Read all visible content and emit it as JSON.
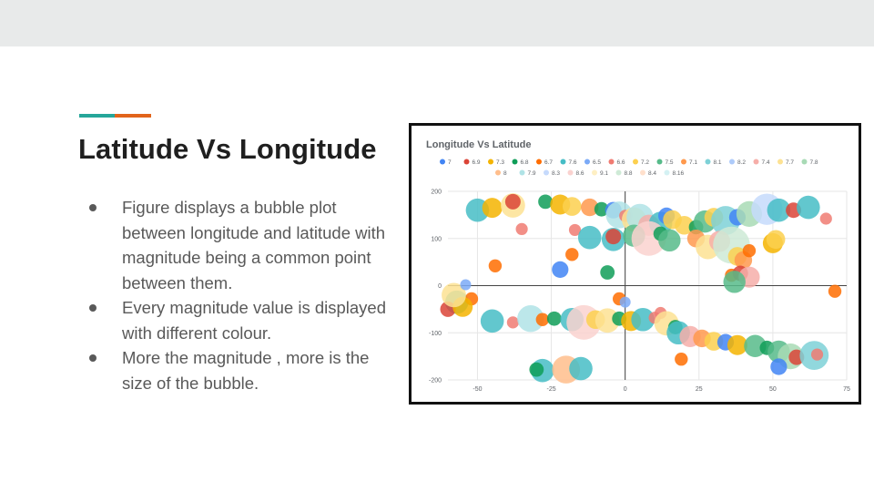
{
  "slide": {
    "title": "Latitude Vs Longitude",
    "bullets": [
      "Figure displays a bubble plot between longitude and latitude with magnitude being a common point between them.",
      "Every magnitude value is displayed with different colour.",
      "More the magnitude , more is the size of the bubble."
    ],
    "accent_colors": [
      "#26a69a",
      "#e2641b"
    ],
    "band_color": "#e8eaea"
  },
  "chart_data": {
    "type": "scatter",
    "title": "Longitude Vs Latitude",
    "xlabel": "",
    "ylabel": "",
    "xlim": [
      -60,
      75
    ],
    "ylim": [
      -200,
      200
    ],
    "x_ticks": [
      "-50",
      "-25",
      "0",
      "25",
      "50",
      "75"
    ],
    "y_ticks": [
      "200",
      "100",
      "0",
      "-100",
      "-200"
    ],
    "x_tick_values": [
      -50,
      -25,
      0,
      25,
      50,
      75
    ],
    "y_tick_values": [
      200,
      100,
      0,
      -100,
      -200
    ],
    "grid": true,
    "legend_position": "top",
    "series": [
      {
        "name": "7",
        "color": "#4285f4"
      },
      {
        "name": "6.9",
        "color": "#db4437"
      },
      {
        "name": "7.3",
        "color": "#f4b400"
      },
      {
        "name": "6.8",
        "color": "#0f9d58"
      },
      {
        "name": "6.7",
        "color": "#ff6d00"
      },
      {
        "name": "7.6",
        "color": "#46bdc6"
      },
      {
        "name": "6.5",
        "color": "#7baaf7"
      },
      {
        "name": "6.6",
        "color": "#f07b72"
      },
      {
        "name": "7.2",
        "color": "#fcd04f"
      },
      {
        "name": "7.5",
        "color": "#57bb8a"
      },
      {
        "name": "7.1",
        "color": "#ff994d"
      },
      {
        "name": "8.1",
        "color": "#7ed1d7"
      },
      {
        "name": "8.2",
        "color": "#aecbfa"
      },
      {
        "name": "7.4",
        "color": "#f6aea9"
      },
      {
        "name": "7.7",
        "color": "#fde293"
      },
      {
        "name": "7.8",
        "color": "#a8dab5"
      },
      {
        "name": "8",
        "color": "#ffbe8c"
      },
      {
        "name": "7.9",
        "color": "#b0e3e6"
      },
      {
        "name": "8.3",
        "color": "#c6dafc"
      },
      {
        "name": "8.6",
        "color": "#fad2cf"
      },
      {
        "name": "9.1",
        "color": "#feefc3"
      },
      {
        "name": "8.8",
        "color": "#ceead6"
      },
      {
        "name": "8.4",
        "color": "#ffe0cc"
      },
      {
        "name": "8.16",
        "color": "#d4f1f3"
      }
    ],
    "points": [
      [
        -50,
        160,
        7.6
      ],
      [
        -45,
        165,
        7.3
      ],
      [
        -38,
        170,
        7.7
      ],
      [
        -38,
        178,
        6.9
      ],
      [
        -27,
        178,
        6.8
      ],
      [
        -22,
        172,
        7.3
      ],
      [
        -18,
        168,
        7.2
      ],
      [
        -12,
        166,
        7.1
      ],
      [
        -8,
        162,
        6.8
      ],
      [
        -4,
        160,
        7.0
      ],
      [
        -2,
        150,
        7.9
      ],
      [
        0,
        148,
        6.6
      ],
      [
        3,
        140,
        7.7
      ],
      [
        5,
        145,
        7.9
      ],
      [
        8,
        128,
        7.4
      ],
      [
        12,
        132,
        7.6
      ],
      [
        14,
        148,
        7.0
      ],
      [
        16,
        140,
        7.2
      ],
      [
        20,
        128,
        7.2
      ],
      [
        24,
        124,
        6.8
      ],
      [
        27,
        136,
        7.5
      ],
      [
        30,
        145,
        7.2
      ],
      [
        34,
        138,
        8.1
      ],
      [
        38,
        145,
        7.0
      ],
      [
        42,
        152,
        7.8
      ],
      [
        48,
        162,
        8.3
      ],
      [
        52,
        160,
        7.6
      ],
      [
        57,
        160,
        6.9
      ],
      [
        62,
        166,
        7.6
      ],
      [
        68,
        142,
        6.6
      ],
      [
        -35,
        120,
        6.6
      ],
      [
        -17,
        118,
        6.6
      ],
      [
        -12,
        102,
        7.6
      ],
      [
        -4,
        98,
        7.6
      ],
      [
        -4,
        104,
        6.9
      ],
      [
        3,
        106,
        7.5
      ],
      [
        8,
        100,
        8.6
      ],
      [
        12,
        110,
        6.8
      ],
      [
        15,
        96,
        7.5
      ],
      [
        24,
        100,
        7.1
      ],
      [
        28,
        82,
        7.7
      ],
      [
        32,
        94,
        7.4
      ],
      [
        36,
        86,
        8.8
      ],
      [
        38,
        62,
        7.2
      ],
      [
        40,
        54,
        7.1
      ],
      [
        42,
        74,
        6.7
      ],
      [
        50,
        90,
        7.3
      ],
      [
        51,
        98,
        7.2
      ],
      [
        -18,
        66,
        6.7
      ],
      [
        -44,
        42,
        6.7
      ],
      [
        -22,
        34,
        7.0
      ],
      [
        -6,
        28,
        6.8
      ],
      [
        36,
        22,
        6.7
      ],
      [
        39,
        26,
        6.9
      ],
      [
        42,
        18,
        7.4
      ],
      [
        37,
        8,
        7.5
      ],
      [
        -57,
        -35,
        7.6
      ],
      [
        -60,
        -50,
        6.9
      ],
      [
        -52,
        -28,
        6.7
      ],
      [
        -55,
        -45,
        7.3
      ],
      [
        -58,
        -20,
        7.7
      ],
      [
        -54,
        2,
        6.5
      ],
      [
        -45,
        -75,
        7.6
      ],
      [
        -38,
        -78,
        6.6
      ],
      [
        -32,
        -70,
        7.9
      ],
      [
        -28,
        -72,
        6.7
      ],
      [
        -24,
        -70,
        6.8
      ],
      [
        -18,
        -72,
        7.6
      ],
      [
        -14,
        -78,
        8.6
      ],
      [
        -10,
        -72,
        7.2
      ],
      [
        -6,
        -74,
        7.7
      ],
      [
        -2,
        -70,
        6.8
      ],
      [
        2,
        -75,
        7.3
      ],
      [
        6,
        -72,
        7.6
      ],
      [
        10,
        -68,
        6.6
      ],
      [
        12,
        -58,
        6.6
      ],
      [
        14,
        -80,
        7.7
      ],
      [
        17,
        -88,
        6.8
      ],
      [
        18,
        -100,
        7.6
      ],
      [
        22,
        -108,
        7.4
      ],
      [
        26,
        -112,
        7.1
      ],
      [
        30,
        -118,
        7.2
      ],
      [
        34,
        -120,
        7.0
      ],
      [
        38,
        -126,
        7.3
      ],
      [
        44,
        -128,
        7.5
      ],
      [
        48,
        -132,
        6.8
      ],
      [
        52,
        -140,
        7.5
      ],
      [
        56,
        -150,
        7.8
      ],
      [
        58,
        -152,
        6.9
      ],
      [
        64,
        -148,
        8.1
      ],
      [
        65,
        -146,
        6.6
      ],
      [
        -2,
        -28,
        6.7
      ],
      [
        0,
        -35,
        6.5
      ],
      [
        71,
        -12,
        6.7
      ],
      [
        -28,
        -180,
        7.6
      ],
      [
        -30,
        -178,
        6.8
      ],
      [
        -20,
        -178,
        8.0
      ],
      [
        -15,
        -176,
        7.6
      ],
      [
        19,
        -156,
        6.7
      ],
      [
        52,
        -172,
        7.0
      ]
    ]
  }
}
